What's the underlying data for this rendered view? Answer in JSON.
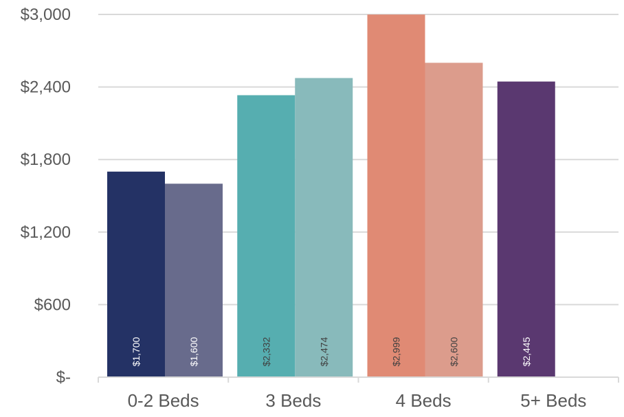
{
  "chart_data": {
    "type": "bar",
    "categories": [
      "0-2 Beds",
      "3 Beds",
      "4 Beds",
      "5+ Beds"
    ],
    "bars": [
      {
        "category": "0-2 Beds",
        "value": 1700,
        "label": "$1,700",
        "color": "#243265",
        "label_color": "#ffffff"
      },
      {
        "category": "0-2 Beds",
        "value": 1600,
        "label": "$1,600",
        "color": "#686b8c",
        "label_color": "#ffffff"
      },
      {
        "category": "3 Beds",
        "value": 2332,
        "label": "$2,332",
        "color": "#56aeb0",
        "label_color": "#404040"
      },
      {
        "category": "3 Beds",
        "value": 2474,
        "label": "$2,474",
        "color": "#88babb",
        "label_color": "#404040"
      },
      {
        "category": "4 Beds",
        "value": 2999,
        "label": "$2,999",
        "color": "#e08a74",
        "label_color": "#404040"
      },
      {
        "category": "4 Beds",
        "value": 2600,
        "label": "$2,600",
        "color": "#dc9c8c",
        "label_color": "#404040"
      },
      {
        "category": "5+ Beds",
        "value": 2445,
        "label": "$2,445",
        "color": "#5a3870",
        "label_color": "#ffffff"
      }
    ],
    "y_ticks": [
      {
        "value": 0,
        "label": "$-"
      },
      {
        "value": 600,
        "label": "$600"
      },
      {
        "value": 1200,
        "label": "$1,200"
      },
      {
        "value": 1800,
        "label": "$1,800"
      },
      {
        "value": 2400,
        "label": "$2,400"
      },
      {
        "value": 3000,
        "label": "$3,000"
      }
    ],
    "ylim": [
      0,
      3000
    ],
    "grid": true,
    "legend": "none",
    "title": "",
    "xlabel": "",
    "ylabel": ""
  },
  "colors": {
    "gridline": "#d9d9d9",
    "axis_line": "#d9d9d9",
    "tick_text": "#595959"
  }
}
